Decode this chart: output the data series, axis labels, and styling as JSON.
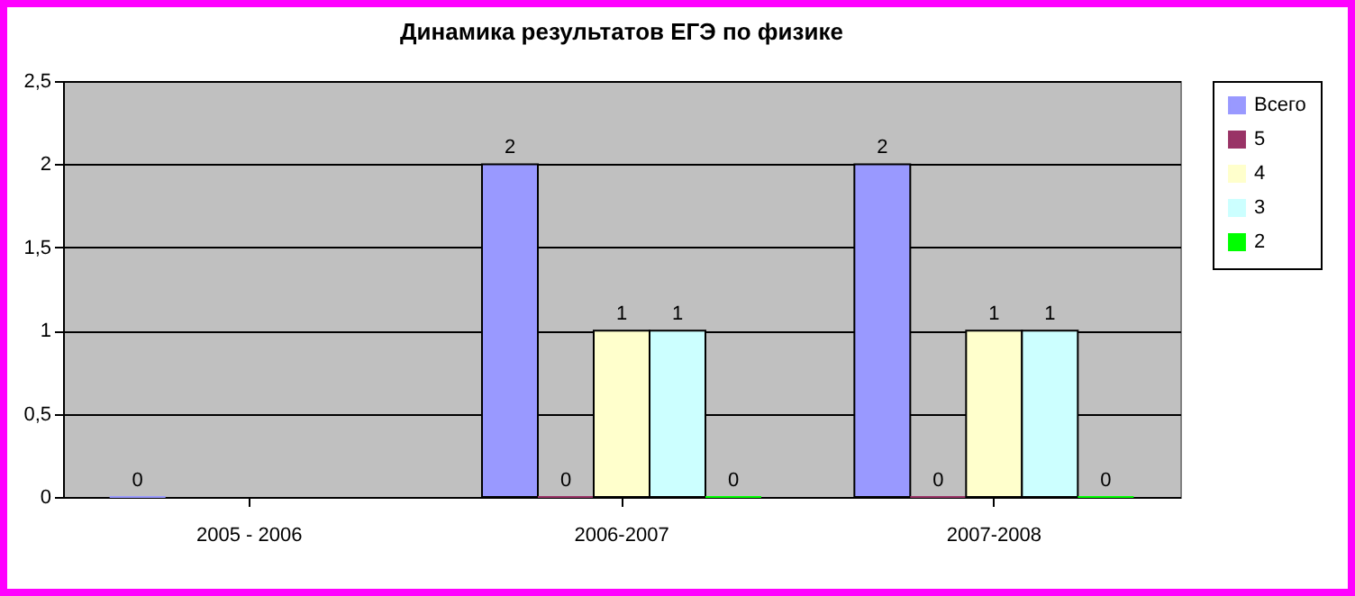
{
  "chart_data": {
    "type": "bar",
    "title": "Динамика результатов ЕГЭ по физике",
    "categories": [
      "2005 - 2006",
      "2006-2007",
      "2007-2008"
    ],
    "series": [
      {
        "name": "Всего",
        "color": "#9999ff",
        "values": [
          0,
          2,
          2
        ]
      },
      {
        "name": "5",
        "color": "#993366",
        "values": [
          null,
          0,
          0
        ]
      },
      {
        "name": "4",
        "color": "#ffffcc",
        "values": [
          null,
          1,
          1
        ]
      },
      {
        "name": "3",
        "color": "#ccffff",
        "values": [
          null,
          1,
          1
        ]
      },
      {
        "name": "2",
        "color": "#00ff00",
        "values": [
          null,
          0,
          0
        ]
      }
    ],
    "ylim": [
      0,
      2.5
    ],
    "yticks": [
      0,
      {
        "value": 0.5,
        "label": "0,5"
      },
      1,
      {
        "value": 1.5,
        "label": "1,5"
      },
      2,
      {
        "value": 2.5,
        "label": "2,5"
      }
    ],
    "grid": "y",
    "legend": "right",
    "data_labels": true
  }
}
